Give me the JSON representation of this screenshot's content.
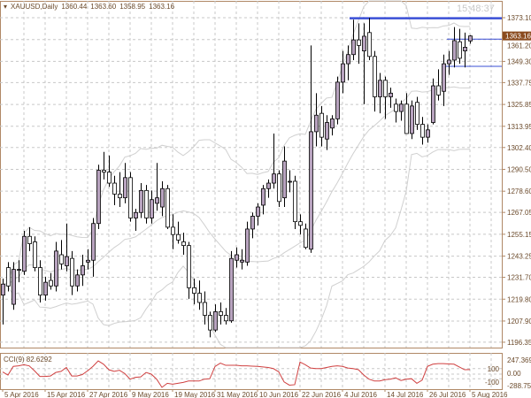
{
  "header": {
    "symbol": "XAUUSD,Daily",
    "open": "1360.44",
    "high": "1363.60",
    "low": "1358.95",
    "close": "1363.16",
    "menu_icon": "triangle-down-icon"
  },
  "clock": "15:48:37",
  "current_price_label": "1363.16",
  "colors": {
    "bull_body": "#b8a3bf",
    "bear_body": "#ffffff",
    "candle_outline": "#000000",
    "grid": "#c8c8c8",
    "frame": "#b08866",
    "bands": "#d0d0d0",
    "resistance_line": "#3a4fd6",
    "cci_line": "#d04040",
    "price_tag": "#8a4b1f"
  },
  "chart_data": [
    {
      "type": "candlestick",
      "title": "XAUUSD,Daily",
      "price_ticks": [
        "1373.10",
        "1361.20",
        "1349.30",
        "1337.75",
        "1325.85",
        "1313.95",
        "1302.40",
        "1290.50",
        "1278.60",
        "1267.05",
        "1255.15",
        "1243.25",
        "1231.70",
        "1219.80",
        "1207.90",
        "1196.35"
      ],
      "ylim": [
        1196.35,
        1373.1
      ],
      "date_ticks": [
        "5 Apr 2016",
        "15 Apr 2016",
        "27 Apr 2016",
        "9 May 2016",
        "19 May 2016",
        "31 May 2016",
        "10 Jun 2016",
        "22 Jun 2016",
        "4 Jul 2016",
        "14 Jul 2016",
        "26 Jul 2016",
        "5 Aug 2016"
      ],
      "overlay": "Bollinger Bands",
      "grid": true,
      "horizontal_lines": [
        {
          "price": 1372.8,
          "style": "thick"
        },
        {
          "price": 1361.4,
          "style": "thin"
        },
        {
          "price": 1346.6,
          "style": "thin"
        }
      ],
      "ohlc": [
        [
          1222,
          1231,
          1206,
          1228
        ],
        [
          1237,
          1240,
          1224,
          1227
        ],
        [
          1217,
          1240,
          1214,
          1236
        ],
        [
          1236,
          1241,
          1229,
          1236
        ],
        [
          1235,
          1257,
          1233,
          1254
        ],
        [
          1254,
          1259,
          1246,
          1250
        ],
        [
          1251,
          1254,
          1235,
          1237
        ],
        [
          1237,
          1241,
          1218,
          1222
        ],
        [
          1222,
          1232,
          1219,
          1229
        ],
        [
          1230,
          1234,
          1225,
          1227
        ],
        [
          1227,
          1251,
          1224,
          1246
        ],
        [
          1244,
          1252,
          1236,
          1239
        ],
        [
          1238,
          1261,
          1235,
          1243
        ],
        [
          1242,
          1246,
          1222,
          1227
        ],
        [
          1227,
          1236,
          1224,
          1233
        ],
        [
          1233,
          1244,
          1227,
          1238
        ],
        [
          1240,
          1247,
          1236,
          1241
        ],
        [
          1241,
          1264,
          1232,
          1261
        ],
        [
          1261,
          1293,
          1258,
          1290
        ],
        [
          1290,
          1300,
          1285,
          1289
        ],
        [
          1289,
          1298,
          1281,
          1283
        ],
        [
          1283,
          1287,
          1271,
          1277
        ],
        [
          1277,
          1289,
          1270,
          1275
        ],
        [
          1275,
          1294,
          1272,
          1286
        ],
        [
          1286,
          1289,
          1262,
          1264
        ],
        [
          1264,
          1269,
          1257,
          1267
        ],
        [
          1267,
          1283,
          1264,
          1279
        ],
        [
          1279,
          1282,
          1261,
          1264
        ],
        [
          1264,
          1279,
          1261,
          1274
        ],
        [
          1272,
          1294,
          1268,
          1275
        ],
        [
          1270,
          1284,
          1265,
          1280
        ],
        [
          1280,
          1282,
          1258,
          1259
        ],
        [
          1259,
          1266,
          1247,
          1255
        ],
        [
          1255,
          1262,
          1250,
          1252
        ],
        [
          1251,
          1256,
          1244,
          1249
        ],
        [
          1249,
          1251,
          1220,
          1226
        ],
        [
          1226,
          1231,
          1217,
          1223
        ],
        [
          1223,
          1230,
          1214,
          1218
        ],
        [
          1218,
          1224,
          1206,
          1211
        ],
        [
          1211,
          1213,
          1199,
          1203
        ],
        [
          1203,
          1217,
          1202,
          1213
        ],
        [
          1213,
          1218,
          1206,
          1211
        ],
        [
          1211,
          1215,
          1206,
          1208
        ],
        [
          1208,
          1246,
          1207,
          1242
        ],
        [
          1241,
          1248,
          1237,
          1244
        ],
        [
          1240,
          1247,
          1236,
          1241
        ],
        [
          1240,
          1262,
          1238,
          1258
        ],
        [
          1258,
          1267,
          1253,
          1265
        ],
        [
          1265,
          1272,
          1260,
          1270
        ],
        [
          1271,
          1282,
          1266,
          1280
        ],
        [
          1280,
          1285,
          1275,
          1283
        ],
        [
          1283,
          1310,
          1280,
          1288
        ],
        [
          1288,
          1290,
          1270,
          1273
        ],
        [
          1275,
          1303,
          1270,
          1295
        ],
        [
          1284,
          1290,
          1278,
          1284
        ],
        [
          1284,
          1287,
          1258,
          1262
        ],
        [
          1262,
          1266,
          1255,
          1260
        ],
        [
          1258,
          1261,
          1247,
          1248
        ],
        [
          1247,
          1358,
          1245,
          1311
        ],
        [
          1311,
          1332,
          1303,
          1320
        ],
        [
          1321,
          1325,
          1303,
          1308
        ],
        [
          1307,
          1320,
          1301,
          1316
        ],
        [
          1313,
          1320,
          1309,
          1318
        ],
        [
          1318,
          1341,
          1315,
          1338
        ],
        [
          1338,
          1355,
          1332,
          1348
        ],
        [
          1348,
          1358,
          1339,
          1353
        ],
        [
          1353,
          1372,
          1350,
          1361
        ],
        [
          1361,
          1370,
          1348,
          1358
        ],
        [
          1355,
          1370,
          1326,
          1363
        ],
        [
          1365,
          1373,
          1350,
          1352
        ],
        [
          1352,
          1355,
          1322,
          1330
        ],
        [
          1330,
          1343,
          1321,
          1339
        ],
        [
          1339,
          1341,
          1318,
          1330
        ],
        [
          1330,
          1335,
          1324,
          1332
        ],
        [
          1326,
          1329,
          1316,
          1322
        ],
        [
          1322,
          1328,
          1317,
          1326
        ],
        [
          1326,
          1332,
          1310,
          1310
        ],
        [
          1310,
          1328,
          1307,
          1325
        ],
        [
          1327,
          1330,
          1312,
          1315
        ],
        [
          1315,
          1319,
          1304,
          1308
        ],
        [
          1308,
          1315,
          1305,
          1312
        ],
        [
          1316,
          1340,
          1315,
          1336
        ],
        [
          1336,
          1345,
          1328,
          1331
        ],
        [
          1333,
          1353,
          1325,
          1348
        ],
        [
          1348,
          1355,
          1342,
          1350
        ],
        [
          1350,
          1368,
          1346,
          1360.6
        ],
        [
          1360,
          1367,
          1348,
          1351
        ],
        [
          1355,
          1365,
          1346,
          1357
        ],
        [
          1360.44,
          1363.6,
          1358.95,
          1363.16
        ]
      ]
    },
    {
      "type": "line",
      "title": "CCI(9) 82.6292",
      "indicator": "CCI(9)",
      "current_value": "82.6292",
      "ylim": [
        -288.7548,
        247.3694
      ],
      "level_ticks": [
        "247.3694",
        "100",
        "0.00",
        "-100",
        "-288.7548"
      ],
      "values": [
        40,
        -20,
        140,
        150,
        170,
        150,
        60,
        -50,
        -50,
        -40,
        30,
        50,
        120,
        -40,
        -40,
        -10,
        60,
        140,
        240,
        180,
        80,
        50,
        70,
        10,
        -110,
        -70,
        -60,
        30,
        0,
        -110,
        -288,
        -200,
        -220,
        -200,
        -180,
        -150,
        -150,
        -150,
        -110,
        -100,
        140,
        200,
        160,
        160,
        160,
        150,
        150,
        145,
        140,
        130,
        120,
        100,
        40,
        -170,
        -240,
        -230,
        220,
        170,
        110,
        100,
        100,
        120,
        140,
        150,
        140,
        110,
        100,
        80,
        -20,
        -110,
        -150,
        -150,
        -120,
        -110,
        -80,
        -140,
        -110,
        -100,
        -200,
        -130,
        140,
        180,
        190,
        190,
        185,
        180,
        130,
        80,
        82.6292
      ]
    }
  ]
}
